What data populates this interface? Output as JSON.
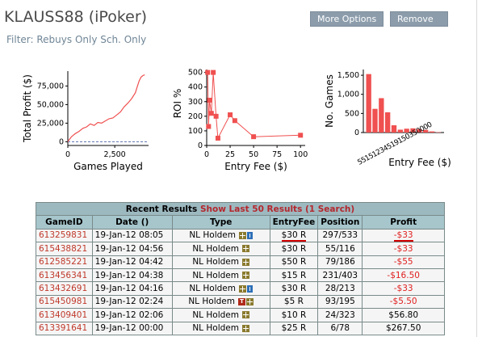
{
  "header": {
    "title": "KLAUSS88 (iPoker)",
    "filter": "Filter: Rebuys Only Sch. Only",
    "more_options": "More Options",
    "remove": "Remove"
  },
  "colors": {
    "series": "#f05050",
    "button": "#8c9cab",
    "table_header": "#a6c6cc",
    "negative": "#e02020",
    "game_id": "#c0392b"
  },
  "chart_data": [
    {
      "type": "line",
      "xlabel": "Games Played",
      "ylabel": "Total Profit ($)",
      "xticks": [
        "0",
        "2,500"
      ],
      "yticks": [
        "0",
        "25,000",
        "50,000",
        "75,000"
      ],
      "xlim": [
        0,
        4300
      ],
      "ylim": [
        -5000,
        95000
      ],
      "zero_line": true,
      "x": [
        0,
        80,
        200,
        400,
        600,
        800,
        1000,
        1200,
        1400,
        1600,
        1800,
        2000,
        2200,
        2400,
        2600,
        2800,
        3000,
        3200,
        3400,
        3600,
        3700,
        3800,
        3900,
        4000,
        4100
      ],
      "y": [
        0,
        3000,
        7000,
        11000,
        14000,
        18000,
        20000,
        24000,
        22000,
        26000,
        25000,
        28000,
        31000,
        32000,
        36000,
        40000,
        47000,
        52000,
        58000,
        66000,
        74000,
        82000,
        87000,
        89000,
        90000
      ]
    },
    {
      "type": "scatter",
      "xlabel": "Entry Fee ($)",
      "ylabel": "ROI %",
      "xticks": [
        "0",
        "25",
        "50",
        "75",
        "100"
      ],
      "yticks": [
        "0",
        "100",
        "200",
        "300",
        "400",
        "500"
      ],
      "xlim": [
        0,
        105
      ],
      "ylim": [
        0,
        520
      ],
      "x": [
        1,
        2,
        3,
        5,
        7,
        10,
        12,
        25,
        30,
        50,
        100
      ],
      "y": [
        500,
        130,
        310,
        220,
        500,
        200,
        50,
        210,
        170,
        60,
        70
      ]
    },
    {
      "type": "bar",
      "xlabel": "Entry Fee ($)",
      "ylabel": "No. Games",
      "yticks": [
        "0",
        "500",
        "1,000",
        "1,500"
      ],
      "ylim": [
        0,
        1650
      ],
      "tick_label": "55151234519150350000",
      "values": [
        1530,
        620,
        900,
        530,
        190,
        75,
        100,
        110,
        90,
        70,
        30,
        10
      ]
    }
  ],
  "results": {
    "caption": "Recent Results",
    "caption_link": "Show Last 50 Results (1 Search)",
    "columns": [
      "GameID",
      "Date ()",
      "Type",
      "EntryFee",
      "Position",
      "Profit"
    ],
    "rows": [
      {
        "id": "613259831",
        "date": "19-Jan-12  08:05",
        "type": "NL Holdem",
        "fee": "$30 R",
        "position": "297/533",
        "profit": "-$33"
      },
      {
        "id": "615438821",
        "date": "19-Jan-12  04:56",
        "type": "NL Holdem",
        "fee": "$30 R",
        "position": "55/116",
        "profit": "-$33"
      },
      {
        "id": "612585221",
        "date": "19-Jan-12  04:42",
        "type": "NL Holdem",
        "fee": "$50 R",
        "position": "79/186",
        "profit": "-$55"
      },
      {
        "id": "613456341",
        "date": "19-Jan-12  04:38",
        "type": "NL Holdem",
        "fee": "$15 R",
        "position": "231/403",
        "profit": "-$16.50"
      },
      {
        "id": "613432691",
        "date": "19-Jan-12  04:16",
        "type": "NL Holdem",
        "fee": "$30 R",
        "position": "28/213",
        "profit": "-$33"
      },
      {
        "id": "615450981",
        "date": "19-Jan-12  02:24",
        "type": "NL Holdem",
        "fee": "$5 R",
        "position": "93/195",
        "profit": "-$5.50"
      },
      {
        "id": "613409401",
        "date": "19-Jan-12  02:06",
        "type": "NL Holdem",
        "fee": "$10 R",
        "position": "24/323",
        "profit": "$56.80"
      },
      {
        "id": "613391641",
        "date": "19-Jan-12  00:00",
        "type": "NL Holdem",
        "fee": "$25 R",
        "position": "6/78",
        "profit": "$267.50"
      }
    ]
  }
}
